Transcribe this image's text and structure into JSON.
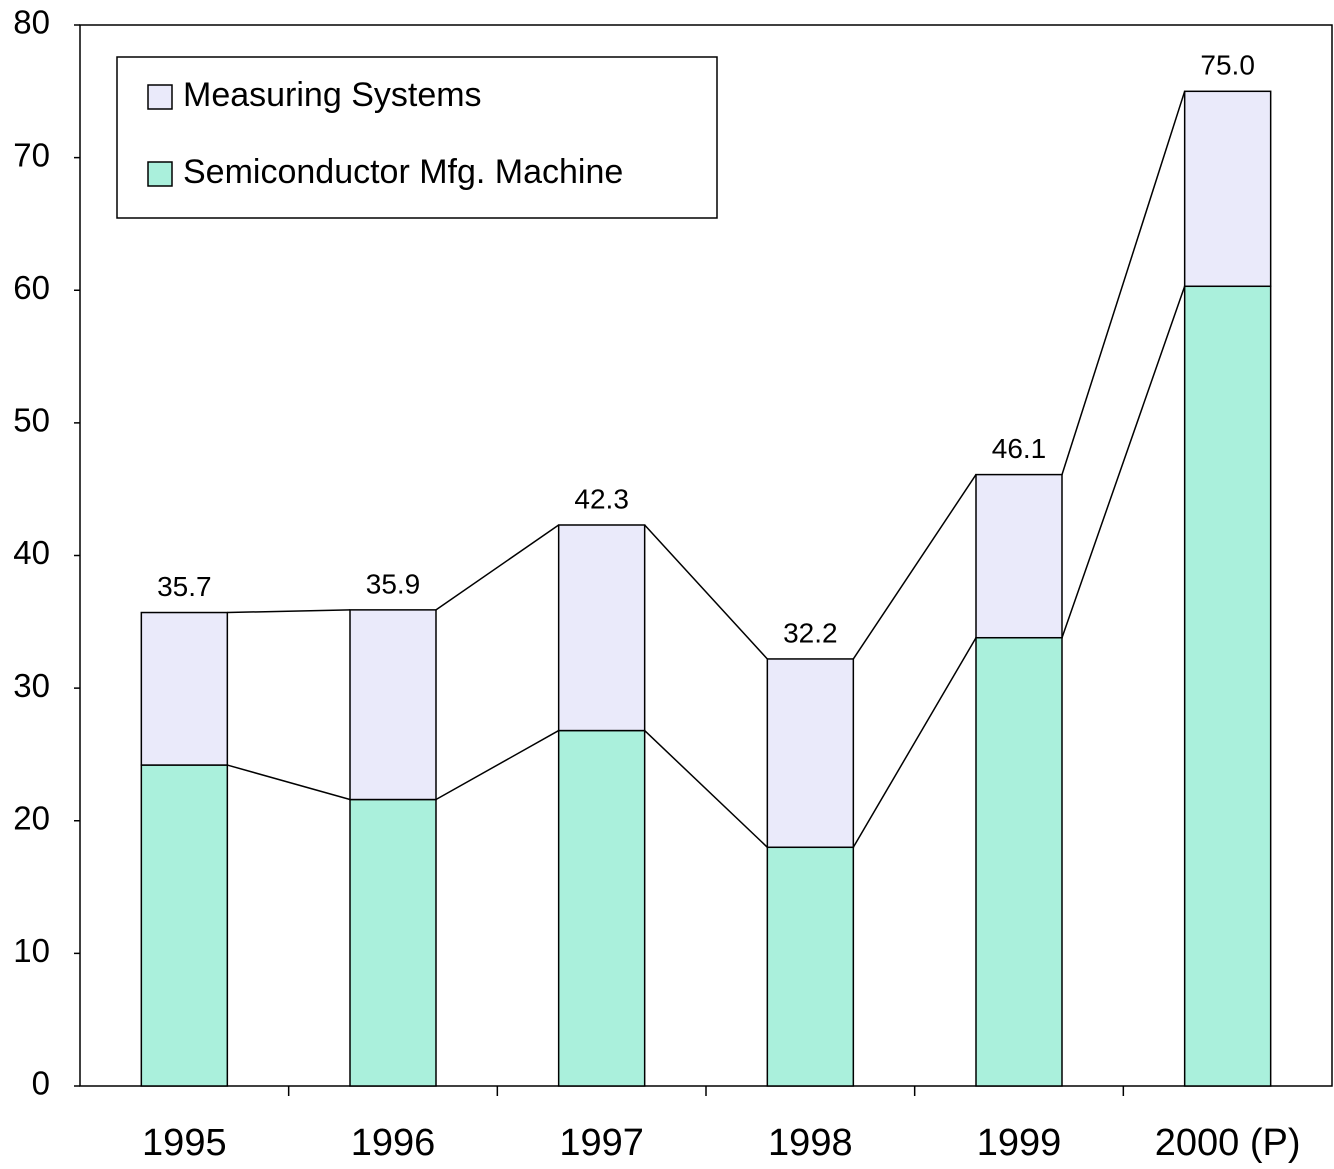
{
  "chart_data": {
    "type": "stacked_bar",
    "categories": [
      "1995",
      "1996",
      "1997",
      "1998",
      "1999",
      "2000 (P)"
    ],
    "series": [
      {
        "name": "Semiconductor Mfg. Machine",
        "color": "#aaf0dc",
        "values": [
          24.2,
          21.6,
          26.8,
          18.0,
          33.8,
          60.3
        ]
      },
      {
        "name": "Measuring Systems",
        "color": "#eaeafa",
        "values": [
          11.5,
          14.3,
          15.5,
          14.2,
          12.3,
          14.7
        ]
      }
    ],
    "total_labels": [
      "35.7",
      "35.9",
      "42.3",
      "32.2",
      "46.1",
      "75.0"
    ],
    "ylim": [
      0,
      80
    ],
    "yticks": [
      0,
      10,
      20,
      30,
      40,
      50,
      60,
      70,
      80
    ],
    "connector_lines": true,
    "legend": "upper left"
  }
}
